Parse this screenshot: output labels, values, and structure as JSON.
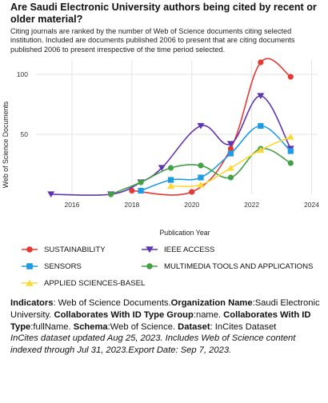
{
  "header": {
    "title": "Are Saudi Electronic University authors being cited by recent or older material?",
    "subtitle": "Citing journals are ranked by the number of Web of Science documents citing selected institution. Included are documents published 2006 to present that are citing documents published 2006 to present irrespective of the time period selected."
  },
  "chart_data": {
    "type": "line",
    "xlabel": "Publication Year",
    "ylabel": "Web of Science Documents",
    "xlim": [
      2014.8,
      2024.2
    ],
    "ylim": [
      0,
      112
    ],
    "xticks": [
      "2016",
      "2018",
      "2020",
      "2022",
      "2024"
    ],
    "yticks": [
      "50",
      "100"
    ],
    "grid": true,
    "legend_position": "bottom",
    "series": [
      {
        "name": "SUSTAINABILITY",
        "color": "#e53935",
        "marker": "circle",
        "points": [
          [
            2018,
            3
          ],
          [
            2020,
            2
          ],
          [
            2021.3,
            38
          ],
          [
            2022.3,
            110
          ],
          [
            2023.3,
            98
          ]
        ]
      },
      {
        "name": "IEEE ACCESS",
        "color": "#5e35b1",
        "marker": "triangle-down",
        "points": [
          [
            2015.3,
            0
          ],
          [
            2017.3,
            0
          ],
          [
            2018.3,
            10
          ],
          [
            2019,
            22
          ],
          [
            2020.3,
            57
          ],
          [
            2021.3,
            42
          ],
          [
            2022.3,
            82
          ],
          [
            2023.3,
            38
          ]
        ]
      },
      {
        "name": "SENSORS",
        "color": "#1e9be5",
        "marker": "square",
        "points": [
          [
            2018.3,
            3
          ],
          [
            2019.3,
            12
          ],
          [
            2020.3,
            14
          ],
          [
            2021.3,
            34
          ],
          [
            2022.3,
            57
          ],
          [
            2023.3,
            36
          ]
        ]
      },
      {
        "name": "MULTIMEDIA TOOLS AND APPLICATIONS",
        "color": "#43a047",
        "marker": "circle",
        "points": [
          [
            2017.3,
            0
          ],
          [
            2018.3,
            10
          ],
          [
            2019.3,
            22
          ],
          [
            2020.3,
            24
          ],
          [
            2021.3,
            14
          ],
          [
            2022.3,
            38
          ],
          [
            2023.3,
            26
          ]
        ]
      },
      {
        "name": "APPLIED SCIENCES-BASEL",
        "color": "#fdd835",
        "marker": "triangle-up",
        "points": [
          [
            2019.3,
            7
          ],
          [
            2020.3,
            8
          ],
          [
            2021.3,
            22
          ],
          [
            2022.3,
            37
          ],
          [
            2023.3,
            48
          ]
        ]
      }
    ]
  },
  "footer": {
    "indicators_label": "Indicators",
    "indicators_value": ": Web of Science Documents.",
    "org_label": "Organization Name",
    "org_value": ":Saudi Electronic University. ",
    "collab_group_label": "Collaborates With ID Type Group",
    "collab_group_value": ":name. ",
    "collab_type_label": "Collaborates With ID Type",
    "collab_type_value": ":fullName. ",
    "schema_label": "Schema",
    "schema_value": ":Web of Science. ",
    "dataset_label": "Dataset",
    "dataset_value": ": InCites Dataset",
    "note": "InCites dataset updated Aug 25, 2023. Includes Web of Science content indexed through Jul 31, 2023.Export Date: Sep 7, 2023."
  }
}
